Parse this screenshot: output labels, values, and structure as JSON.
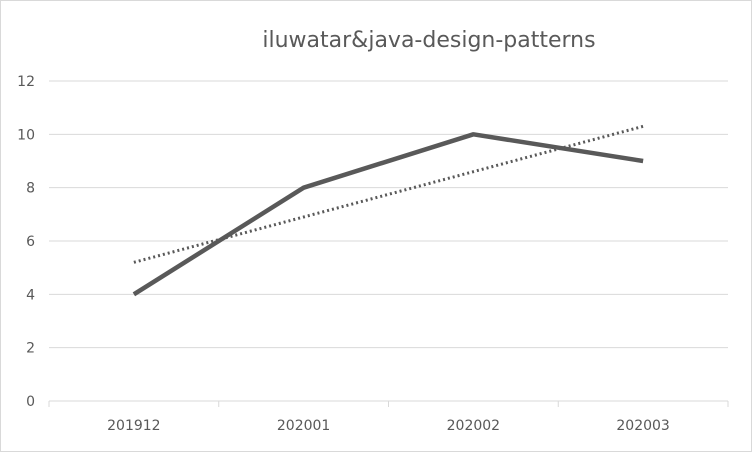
{
  "chart_data": {
    "type": "line",
    "title": "iluwatar&java-design-patterns",
    "categories": [
      "201912",
      "202001",
      "202002",
      "202003"
    ],
    "series": [
      {
        "values": [
          4,
          8,
          10,
          9
        ],
        "color": "#595959",
        "style": "solid"
      }
    ],
    "trendline": {
      "type": "linear",
      "values": [
        5.2,
        6.9,
        8.6,
        10.3
      ],
      "color": "#595959",
      "style": "dotted"
    },
    "ylim": [
      0,
      12
    ],
    "yticks": [
      0,
      2,
      4,
      6,
      8,
      10,
      12
    ],
    "grid": true,
    "legend": "none"
  }
}
